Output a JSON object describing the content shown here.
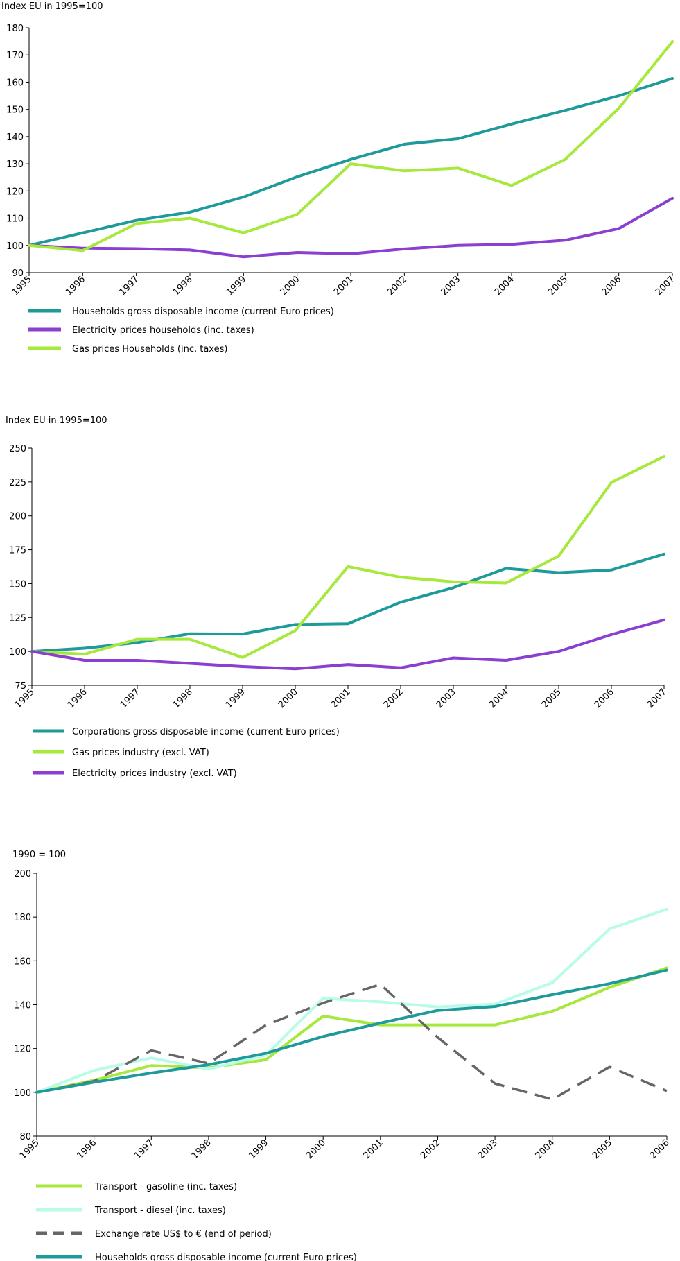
{
  "chart_data": [
    {
      "type": "line",
      "title": "",
      "ylabel": "Index EU in 1995=100",
      "xlabel": "",
      "ylim": [
        90,
        180
      ],
      "yticks": [
        90,
        100,
        110,
        120,
        130,
        140,
        150,
        160,
        170,
        180
      ],
      "grid": false,
      "legend_position": "bottom",
      "x": [
        "1995",
        "1996",
        "1997",
        "1998",
        "1999",
        "2000",
        "2001",
        "2002",
        "2003",
        "2004",
        "2005",
        "2006",
        "2007"
      ],
      "series": [
        {
          "name": "Households gross disposable income (current Euro prices)",
          "color": "#1f9a9a",
          "dash": false,
          "values": [
            100,
            104.6,
            109.2,
            112.2,
            117.8,
            125.2,
            131.6,
            137.2,
            139.2,
            144.6,
            149.6,
            155.0,
            161.4
          ]
        },
        {
          "name": "Electricity prices households (inc. taxes)",
          "color": "#8a3fd1",
          "dash": false,
          "values": [
            100,
            99.0,
            98.8,
            98.3,
            95.8,
            97.4,
            96.9,
            98.7,
            100.0,
            100.4,
            101.9,
            106.2,
            117.3
          ]
        },
        {
          "name": "Gas prices Households (inc. taxes)",
          "color": "#a6e83c",
          "dash": false,
          "values": [
            100,
            98.1,
            108.0,
            110.0,
            104.6,
            111.4,
            130.0,
            127.4,
            128.4,
            122.0,
            131.6,
            150.4,
            174.9
          ]
        }
      ]
    },
    {
      "type": "line",
      "title": "",
      "ylabel": "Index EU in 1995=100",
      "xlabel": "",
      "ylim": [
        75,
        250
      ],
      "yticks": [
        75,
        100,
        125,
        150,
        175,
        200,
        225,
        250
      ],
      "grid": false,
      "legend_position": "bottom",
      "x": [
        "1995",
        "1996",
        "1997",
        "1998",
        "1999",
        "2000",
        "2001",
        "2002",
        "2003",
        "2004",
        "2005",
        "2006",
        "2007"
      ],
      "series": [
        {
          "name": "Corporations gross disposable income (current Euro prices)",
          "color": "#1f9a9a",
          "dash": false,
          "values": [
            100,
            102.4,
            106.5,
            113.0,
            112.8,
            119.8,
            120.4,
            136.3,
            147.0,
            161.2,
            158.1,
            160.1,
            171.8
          ]
        },
        {
          "name": "Gas prices industry (excl. VAT)",
          "color": "#a6e83c",
          "dash": false,
          "values": [
            100,
            98.0,
            109.0,
            109.0,
            95.5,
            115.3,
            162.6,
            154.7,
            151.4,
            150.5,
            170.4,
            224.6,
            243.8
          ]
        },
        {
          "name": "Electricity prices industry (excl. VAT)",
          "color": "#8a3fd1",
          "dash": false,
          "values": [
            100,
            93.4,
            93.4,
            91.1,
            88.8,
            87.2,
            90.3,
            87.9,
            95.2,
            93.4,
            100.0,
            112.4,
            123.2
          ]
        }
      ]
    },
    {
      "type": "line",
      "title": "",
      "ylabel": "1990 = 100",
      "xlabel": "",
      "ylim": [
        80,
        200
      ],
      "yticks": [
        80,
        100,
        120,
        140,
        160,
        180,
        200
      ],
      "grid": false,
      "legend_position": "bottom",
      "x": [
        "1995",
        "1996",
        "1997",
        "1998",
        "1999",
        "2000",
        "2001",
        "2002",
        "2003",
        "2004",
        "2005",
        "2006"
      ],
      "series": [
        {
          "name": "Transport - gasoline (inc. taxes)",
          "color": "#a6e83c",
          "dash": false,
          "values": [
            100,
            105.5,
            112.2,
            111.2,
            114.9,
            134.8,
            130.8,
            130.8,
            130.8,
            137.0,
            147.9,
            156.8
          ]
        },
        {
          "name": "Transport - diesel (inc. taxes)",
          "color": "#b7fbe8",
          "dash": false,
          "values": [
            100,
            110.0,
            115.7,
            110.6,
            117.0,
            142.9,
            141.3,
            139.0,
            140.3,
            150.0,
            174.6,
            183.6
          ]
        },
        {
          "name": "Exchange rate US$ to € (end of period)",
          "color": "#666666",
          "dash": true,
          "values": [
            100,
            105.1,
            119.1,
            113.2,
            130.7,
            140.8,
            149.3,
            125.1,
            104.0,
            96.8,
            111.6,
            100.6
          ]
        },
        {
          "name": "Households gross disposable income (current Euro prices)",
          "color": "#1f9a9a",
          "dash": false,
          "values": [
            100,
            104.6,
            108.8,
            112.6,
            117.8,
            125.5,
            131.6,
            137.4,
            139.2,
            144.6,
            149.6,
            155.8
          ]
        }
      ]
    }
  ]
}
